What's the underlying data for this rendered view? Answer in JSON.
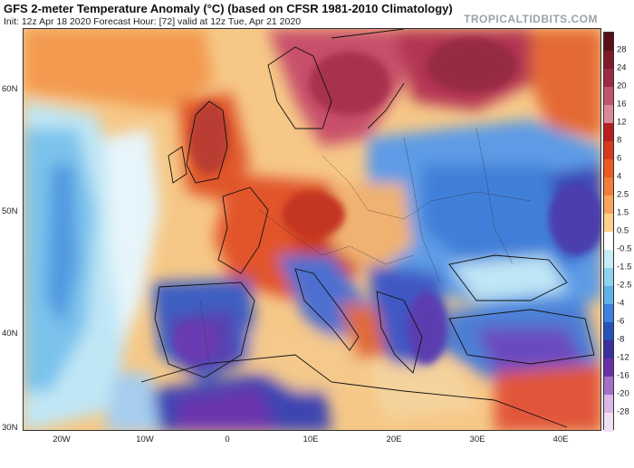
{
  "header": {
    "title": "GFS 2-meter Temperature Anomaly (°C) (based on CFSR 1981-2010 Climatology)",
    "subtitle": "Init: 12z Apr 18 2020   Forecast Hour: [72]   valid at 12z Tue, Apr 21 2020",
    "brand": "TROPICALTIDBITS.COM"
  },
  "axes": {
    "latitudes": [
      "60N",
      "50N",
      "40N",
      "30N"
    ],
    "longitudes": [
      "20W",
      "10W",
      "0",
      "10E",
      "20E",
      "30E",
      "40E"
    ]
  },
  "colorbar": {
    "labels": [
      "28",
      "24",
      "20",
      "16",
      "12",
      "8",
      "6",
      "4",
      "2.5",
      "1.5",
      "0.5",
      "-0.5",
      "-1.5",
      "-2.5",
      "-4",
      "-6",
      "-8",
      "-12",
      "-16",
      "-20",
      "-28"
    ],
    "colors": [
      "#5a0f16",
      "#7e1a2a",
      "#9d2a42",
      "#c0566c",
      "#d98a9a",
      "#b81e1e",
      "#d73a1e",
      "#ea5b21",
      "#f27c3a",
      "#f9a35c",
      "#fcd08c",
      "#ffffff",
      "#c7ecf6",
      "#8fd3ef",
      "#5eb2ea",
      "#3d82dd",
      "#2752b8",
      "#3c2f9e",
      "#6b2fa8",
      "#a46fc9",
      "#d9b8e6",
      "#f0dff5"
    ]
  },
  "map": {
    "background_color": "#f6c887",
    "regions": [
      {
        "name": "scandinavia-warm",
        "color": "#c2435e"
      },
      {
        "name": "western-europe-warm",
        "color": "#e2532a"
      },
      {
        "name": "eastern-europe-cold",
        "color": "#4a8ae0"
      },
      {
        "name": "atlantic-cold",
        "color": "#8fd3ef"
      },
      {
        "name": "iberia-cold",
        "color": "#3d5fc0"
      },
      {
        "name": "north-africa-cold",
        "color": "#3c43b2"
      }
    ]
  }
}
